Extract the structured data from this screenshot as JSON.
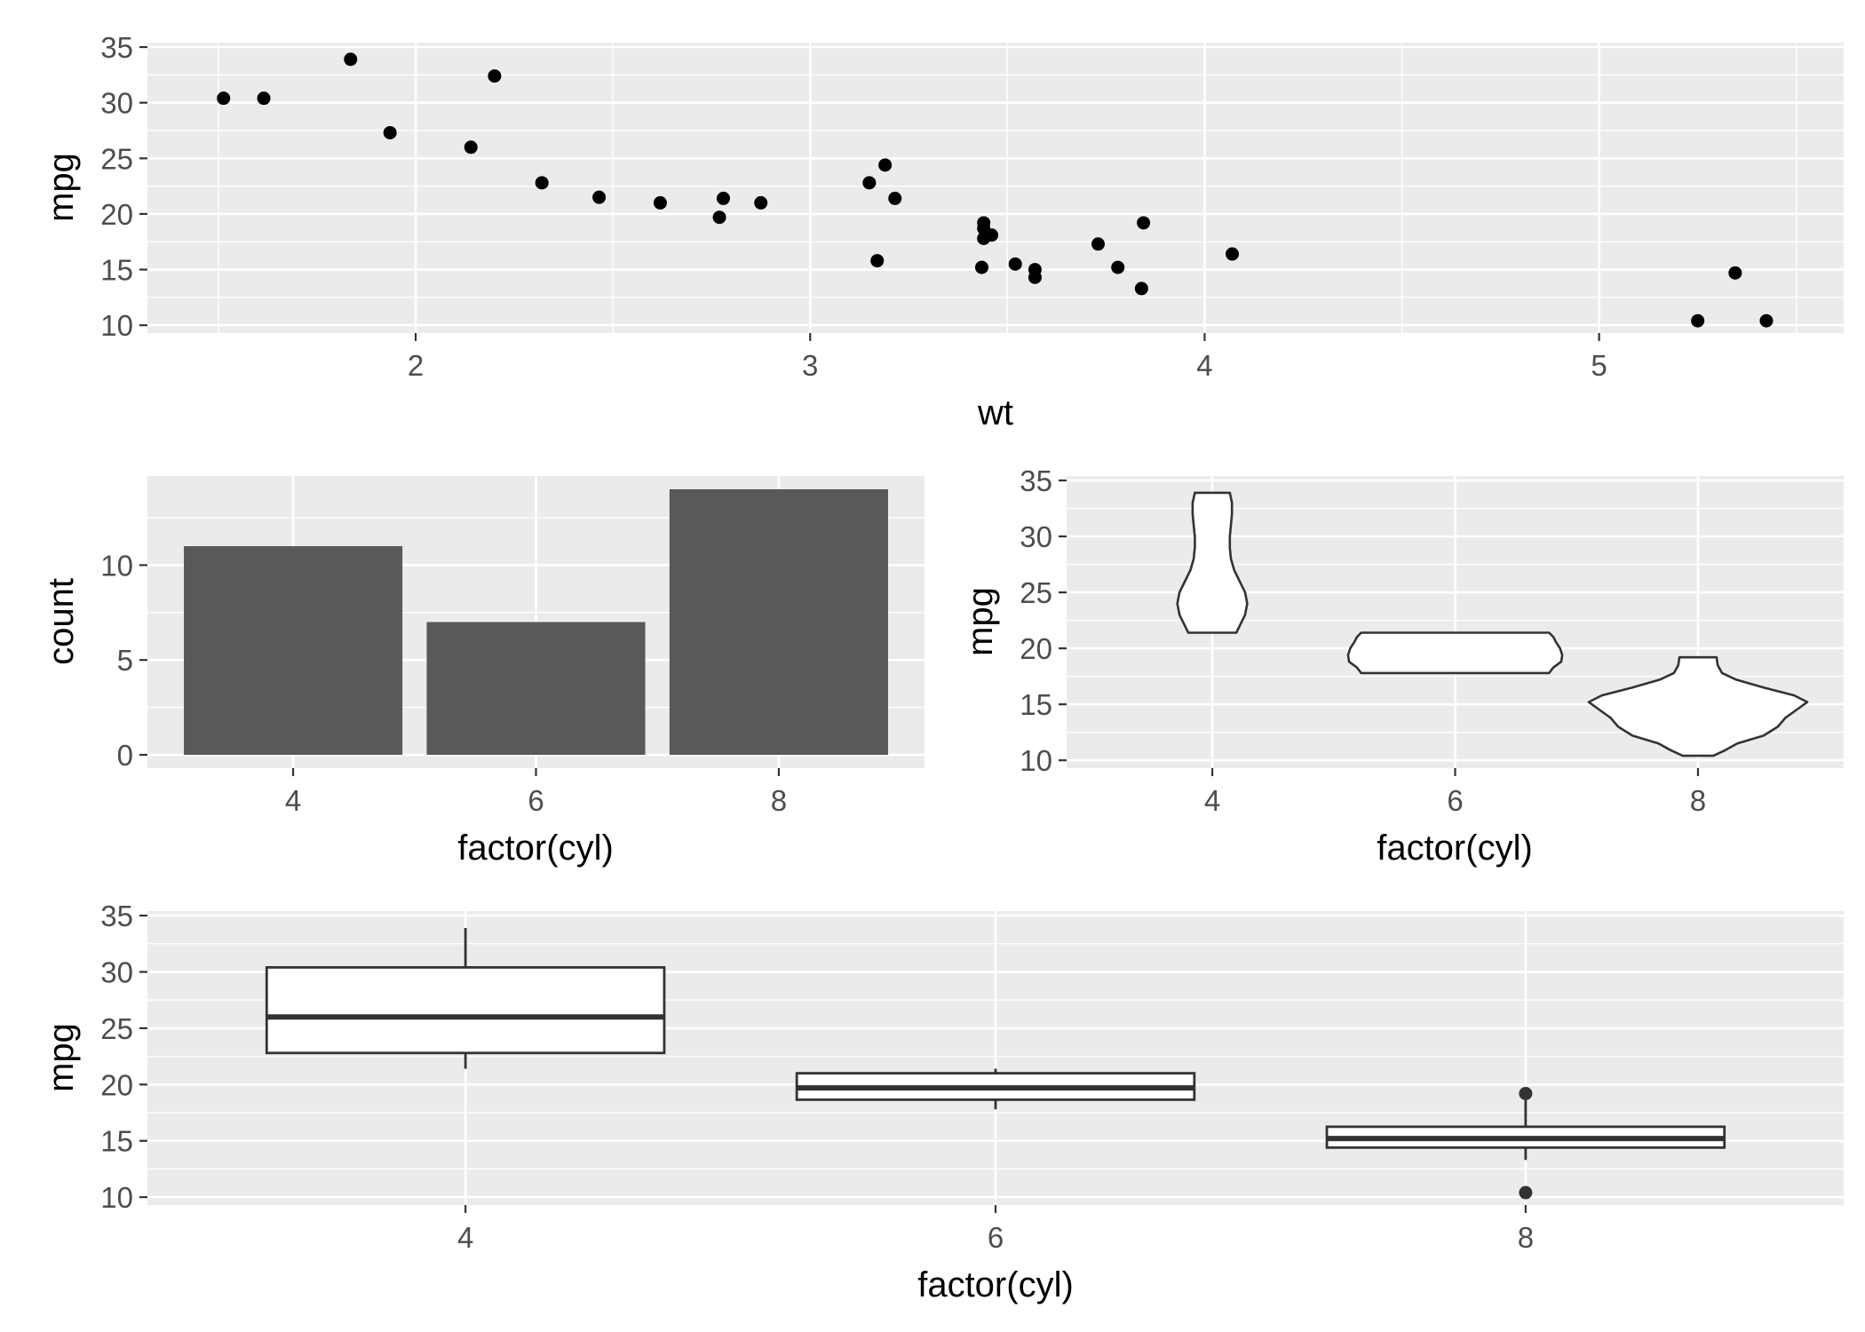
{
  "chart_data": [
    {
      "type": "scatter",
      "xlabel": "wt",
      "ylabel": "mpg",
      "xlim": [
        1.32,
        5.62
      ],
      "ylim": [
        9.3,
        35.4
      ],
      "x_ticks": [
        2,
        3,
        4,
        5
      ],
      "y_ticks": [
        10,
        15,
        20,
        25,
        30,
        35
      ],
      "grid": true,
      "points": [
        {
          "x": 2.62,
          "y": 21.0
        },
        {
          "x": 2.875,
          "y": 21.0
        },
        {
          "x": 2.32,
          "y": 22.8
        },
        {
          "x": 3.215,
          "y": 21.4
        },
        {
          "x": 3.44,
          "y": 18.7
        },
        {
          "x": 3.46,
          "y": 18.1
        },
        {
          "x": 3.57,
          "y": 14.3
        },
        {
          "x": 3.19,
          "y": 24.4
        },
        {
          "x": 3.15,
          "y": 22.8
        },
        {
          "x": 3.44,
          "y": 19.2
        },
        {
          "x": 3.44,
          "y": 17.8
        },
        {
          "x": 4.07,
          "y": 16.4
        },
        {
          "x": 3.73,
          "y": 17.3
        },
        {
          "x": 3.78,
          "y": 15.2
        },
        {
          "x": 5.25,
          "y": 10.4
        },
        {
          "x": 5.424,
          "y": 10.4
        },
        {
          "x": 5.345,
          "y": 14.7
        },
        {
          "x": 2.2,
          "y": 32.4
        },
        {
          "x": 1.615,
          "y": 30.4
        },
        {
          "x": 1.835,
          "y": 33.9
        },
        {
          "x": 2.465,
          "y": 21.5
        },
        {
          "x": 3.52,
          "y": 15.5
        },
        {
          "x": 3.435,
          "y": 15.2
        },
        {
          "x": 3.84,
          "y": 13.3
        },
        {
          "x": 3.845,
          "y": 19.2
        },
        {
          "x": 1.935,
          "y": 27.3
        },
        {
          "x": 2.14,
          "y": 26.0
        },
        {
          "x": 1.513,
          "y": 30.4
        },
        {
          "x": 3.17,
          "y": 15.8
        },
        {
          "x": 2.77,
          "y": 19.7
        },
        {
          "x": 3.57,
          "y": 15.0
        },
        {
          "x": 2.78,
          "y": 21.4
        }
      ]
    },
    {
      "type": "bar",
      "xlabel": "factor(cyl)",
      "ylabel": "count",
      "categories": [
        "4",
        "6",
        "8"
      ],
      "values": [
        11,
        7,
        14
      ],
      "ylim": [
        -0.7,
        14.7
      ],
      "y_ticks": [
        0,
        5,
        10
      ],
      "color": "#595959",
      "grid": true
    },
    {
      "type": "violin",
      "xlabel": "factor(cyl)",
      "ylabel": "mpg",
      "categories": [
        "4",
        "6",
        "8"
      ],
      "ylim": [
        9.3,
        35.4
      ],
      "y_ticks": [
        10,
        15,
        20,
        25,
        30,
        35
      ],
      "grid": true,
      "series": [
        {
          "category": "4",
          "profile": [
            [
              21.4,
              0.22
            ],
            [
              22.0,
              0.25
            ],
            [
              23.0,
              0.3
            ],
            [
              24.0,
              0.32
            ],
            [
              25.0,
              0.3
            ],
            [
              26.0,
              0.25
            ],
            [
              27.0,
              0.2
            ],
            [
              28.0,
              0.17
            ],
            [
              29.0,
              0.16
            ],
            [
              30.0,
              0.16
            ],
            [
              31.0,
              0.17
            ],
            [
              32.0,
              0.18
            ],
            [
              33.0,
              0.18
            ],
            [
              33.9,
              0.16
            ]
          ]
        },
        {
          "category": "6",
          "profile": [
            [
              17.8,
              0.86
            ],
            [
              18.3,
              0.9
            ],
            [
              18.8,
              0.97
            ],
            [
              19.4,
              0.98
            ],
            [
              20.0,
              0.96
            ],
            [
              20.6,
              0.92
            ],
            [
              21.0,
              0.9
            ],
            [
              21.4,
              0.86
            ]
          ]
        },
        {
          "category": "8",
          "profile": [
            [
              10.4,
              0.14
            ],
            [
              10.9,
              0.25
            ],
            [
              11.5,
              0.36
            ],
            [
              12.2,
              0.6
            ],
            [
              13.0,
              0.73
            ],
            [
              13.8,
              0.8
            ],
            [
              14.5,
              0.9
            ],
            [
              15.2,
              1.0
            ],
            [
              15.8,
              0.88
            ],
            [
              16.5,
              0.6
            ],
            [
              17.2,
              0.35
            ],
            [
              17.8,
              0.22
            ],
            [
              18.5,
              0.18
            ],
            [
              19.2,
              0.17
            ]
          ]
        }
      ]
    },
    {
      "type": "box",
      "xlabel": "factor(cyl)",
      "ylabel": "mpg",
      "categories": [
        "4",
        "6",
        "8"
      ],
      "ylim": [
        9.3,
        35.4
      ],
      "y_ticks": [
        10,
        15,
        20,
        25,
        30,
        35
      ],
      "grid": true,
      "boxes": [
        {
          "category": "4",
          "min": 21.4,
          "q1": 22.8,
          "median": 26.0,
          "q3": 30.4,
          "max": 33.9,
          "outliers": []
        },
        {
          "category": "6",
          "min": 17.8,
          "q1": 18.65,
          "median": 19.7,
          "q3": 21.0,
          "max": 21.4,
          "outliers": []
        },
        {
          "category": "8",
          "min": 13.3,
          "q1": 14.4,
          "median": 15.2,
          "q3": 16.25,
          "max": 18.7,
          "outliers": [
            10.4,
            19.2
          ]
        }
      ]
    }
  ]
}
